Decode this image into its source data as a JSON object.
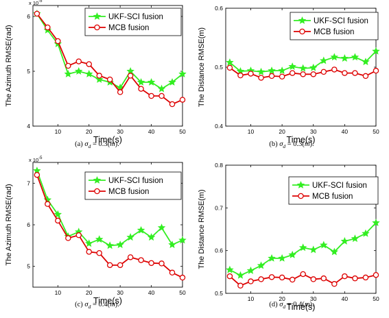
{
  "charts": {
    "chart_data": [
      {
        "id": "a",
        "type": "line",
        "caption_label": "(a)",
        "caption_sigma": "σ",
        "caption_sub": "d",
        "caption_eq": " = 0.3(",
        "caption_m": "m",
        "caption_tail": ").",
        "xlabel": "Time(s)",
        "ylabel": "The Azimuth RMSE(rad)",
        "y_exponent_base": "x 10",
        "y_exponent_power": "-5",
        "xlim": [
          2,
          50
        ],
        "ylim": [
          4,
          6.2
        ],
        "xticks": [
          "10",
          "20",
          "30",
          "40",
          "50"
        ],
        "yticks": [
          "4",
          "5",
          "6"
        ],
        "x": [
          3.3,
          6.7,
          10,
          13.3,
          16.7,
          20,
          23.3,
          26.7,
          30,
          33.3,
          36.7,
          40,
          43.3,
          46.7,
          50
        ],
        "series": [
          {
            "name": "UKF-SCI fusion",
            "color": "#33ee22",
            "marker": "star",
            "values": [
              6.05,
              5.75,
              5.5,
              4.95,
              5.0,
              4.95,
              4.85,
              4.8,
              4.7,
              5.0,
              4.8,
              4.8,
              4.68,
              4.8,
              4.95
            ]
          },
          {
            "name": "MCB fusion",
            "color": "#dd0000",
            "marker": "circle",
            "values": [
              6.05,
              5.8,
              5.55,
              5.1,
              5.18,
              5.13,
              4.92,
              4.85,
              4.62,
              4.92,
              4.68,
              4.55,
              4.55,
              4.4,
              4.48
            ]
          }
        ]
      },
      {
        "id": "b",
        "type": "line",
        "caption_label": "(b)",
        "caption_sigma": "σ",
        "caption_sub": "d",
        "caption_eq": " = 0.3(",
        "caption_m": "m",
        "caption_tail": ").",
        "xlabel": "Time(s)",
        "ylabel": "The Distance RMSE(m)",
        "y_exponent_base": "",
        "y_exponent_power": "",
        "xlim": [
          2,
          50
        ],
        "ylim": [
          0.4,
          0.6
        ],
        "xticks": [
          "10",
          "20",
          "30",
          "40",
          "50"
        ],
        "yticks": [
          "0.4",
          "0.5",
          "0.6"
        ],
        "x": [
          3.3,
          6.7,
          10,
          13.3,
          16.7,
          20,
          23.3,
          26.7,
          30,
          33.3,
          36.7,
          40,
          43.3,
          46.7,
          50
        ],
        "series": [
          {
            "name": "UKF-SCI fusion",
            "color": "#33ee22",
            "marker": "star",
            "values": [
              0.508,
              0.493,
              0.494,
              0.492,
              0.494,
              0.494,
              0.501,
              0.498,
              0.499,
              0.511,
              0.517,
              0.515,
              0.517,
              0.509,
              0.527
            ]
          },
          {
            "name": "MCB fusion",
            "color": "#dd0000",
            "marker": "circle",
            "values": [
              0.499,
              0.486,
              0.489,
              0.482,
              0.485,
              0.484,
              0.49,
              0.488,
              0.488,
              0.492,
              0.496,
              0.49,
              0.49,
              0.485,
              0.494
            ]
          }
        ]
      },
      {
        "id": "c",
        "type": "line",
        "caption_label": "(c)",
        "caption_sigma": "σ",
        "caption_sub": "d",
        "caption_eq": " = 0.4(",
        "caption_m": "m",
        "caption_tail": ").",
        "xlabel": "Time(s)",
        "ylabel": "The Azimuth RMSE(rad)",
        "y_exponent_base": "x 10",
        "y_exponent_power": "-5",
        "xlim": [
          2,
          50
        ],
        "ylim": [
          4.5,
          7.5
        ],
        "xticks": [
          "10",
          "20",
          "30",
          "40",
          "50"
        ],
        "yticks": [
          "5",
          "6",
          "7"
        ],
        "x": [
          3.3,
          6.7,
          10,
          13.3,
          16.7,
          20,
          23.3,
          26.7,
          30,
          33.3,
          36.7,
          40,
          43.3,
          46.7,
          50
        ],
        "series": [
          {
            "name": "UKF-SCI fusion",
            "color": "#33ee22",
            "marker": "star",
            "values": [
              7.3,
              6.6,
              6.25,
              5.72,
              5.83,
              5.55,
              5.65,
              5.5,
              5.52,
              5.7,
              5.87,
              5.7,
              5.93,
              5.52,
              5.63
            ]
          },
          {
            "name": "MCB fusion",
            "color": "#dd0000",
            "marker": "circle",
            "values": [
              7.2,
              6.5,
              6.1,
              5.68,
              5.75,
              5.35,
              5.32,
              5.03,
              5.03,
              5.22,
              5.15,
              5.08,
              5.07,
              4.85,
              4.73
            ]
          }
        ]
      },
      {
        "id": "d",
        "type": "line",
        "caption_label": "(d)",
        "caption_sigma": "σ",
        "caption_sub": "d",
        "caption_eq": " = 0.4(",
        "caption_m": "m",
        "caption_tail": ").",
        "xlabel": "Time(s)",
        "ylabel": "The Distance RMSE(m)",
        "y_exponent_base": "",
        "y_exponent_power": "",
        "xlim": [
          2,
          50
        ],
        "ylim": [
          0.5,
          0.8
        ],
        "xticks": [
          "10",
          "20",
          "30",
          "40",
          "50"
        ],
        "yticks": [
          "0.5",
          "0.6",
          "0.7",
          "0.8"
        ],
        "x": [
          3.3,
          6.7,
          10,
          13.3,
          16.7,
          20,
          23.3,
          26.7,
          30,
          33.3,
          36.7,
          40,
          43.3,
          46.7,
          50
        ],
        "series": [
          {
            "name": "UKF-SCI fusion",
            "color": "#33ee22",
            "marker": "star",
            "values": [
              0.555,
              0.542,
              0.553,
              0.565,
              0.582,
              0.582,
              0.59,
              0.607,
              0.602,
              0.613,
              0.597,
              0.622,
              0.628,
              0.64,
              0.665
            ]
          },
          {
            "name": "MCB fusion",
            "color": "#dd0000",
            "marker": "circle",
            "values": [
              0.54,
              0.518,
              0.528,
              0.533,
              0.538,
              0.537,
              0.532,
              0.545,
              0.533,
              0.535,
              0.522,
              0.54,
              0.535,
              0.537,
              0.543
            ]
          }
        ]
      }
    ]
  }
}
